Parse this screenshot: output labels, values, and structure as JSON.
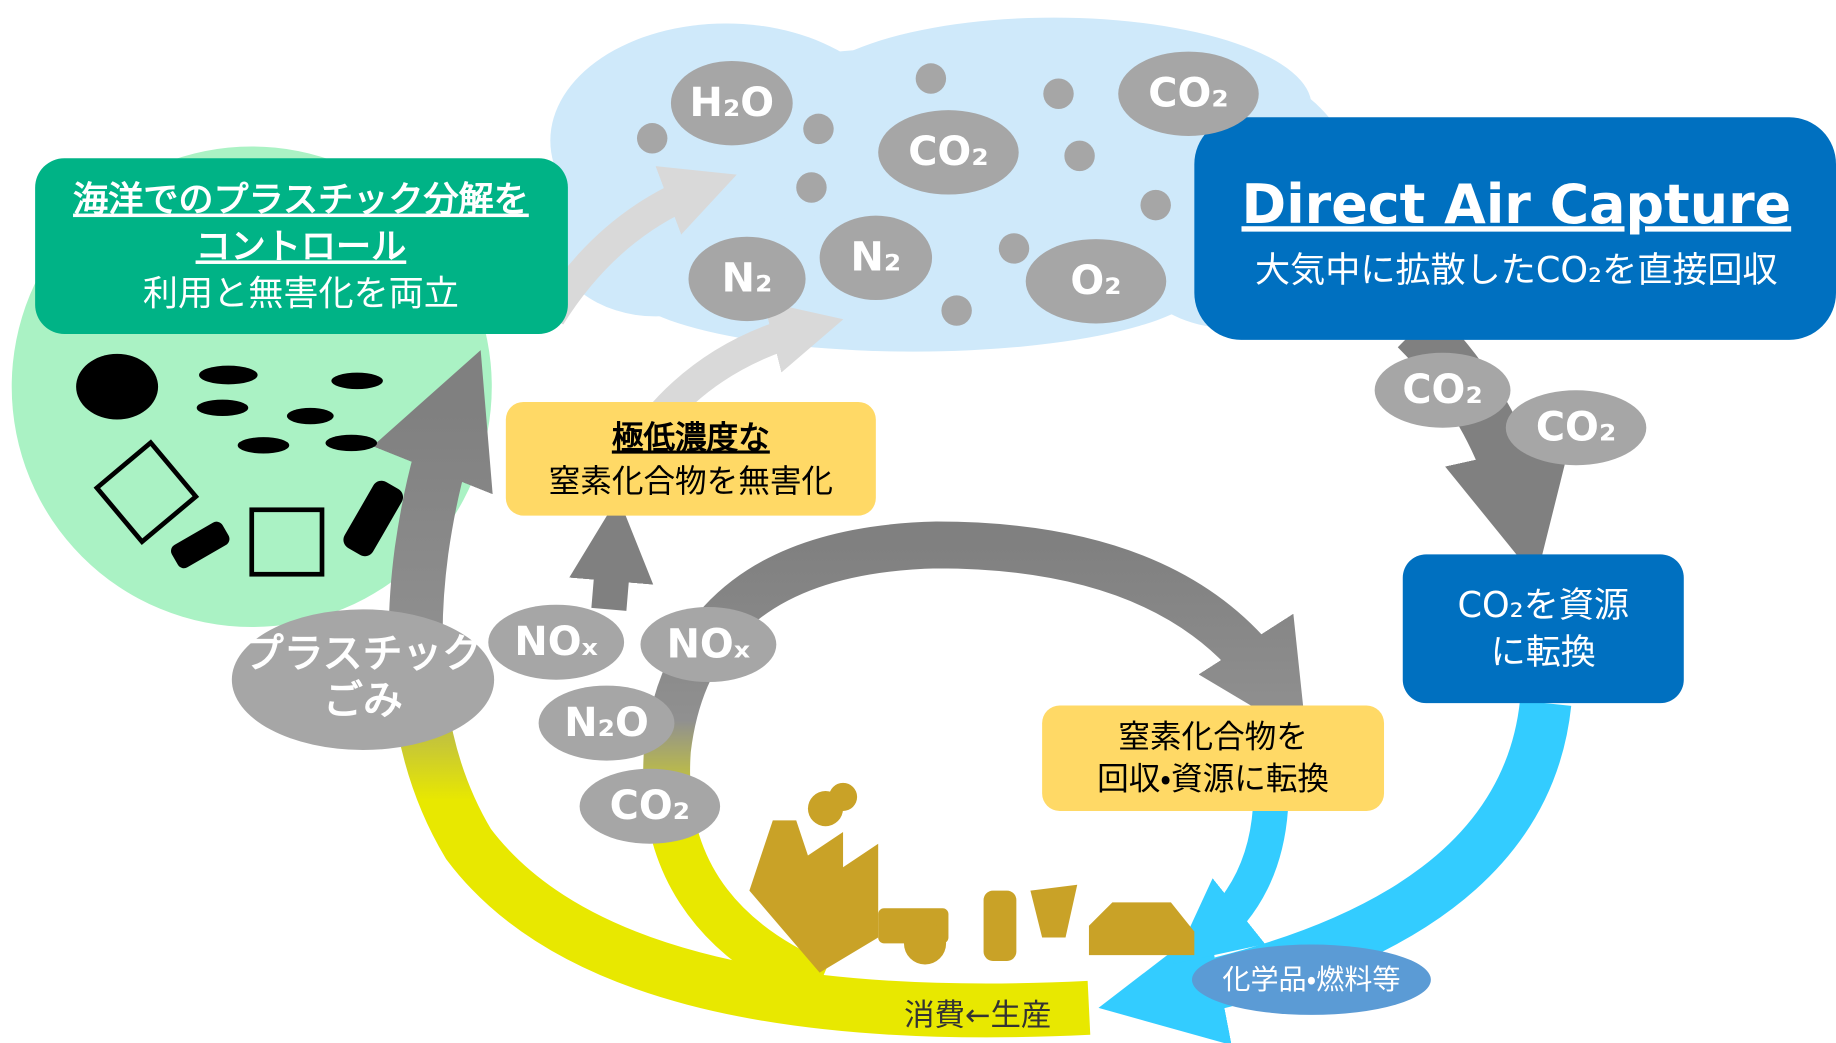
{
  "ocean_box": {
    "title_lines": [
      "海洋でのプラスチック分解を",
      "コントロール"
    ],
    "subtitle": "利用と無害化を両立"
  },
  "dac_box": {
    "title": "Direct Air Capture",
    "subtitle": "大気中に拡散したCO₂を直接回収"
  },
  "nox_box": {
    "title": "極低濃度な",
    "subtitle": "窒素化合物を無害化"
  },
  "recover_box": {
    "lines": [
      "窒素化合物を",
      "回収・資源に転換"
    ]
  },
  "resource_box": {
    "lines": [
      "CO₂を資源",
      "に転換"
    ]
  },
  "plastic_label": {
    "lines": [
      "プラスチック",
      "ごみ"
    ]
  },
  "products_label": "化学品・燃料等",
  "cycle_label": "消費←生産",
  "cloud_molecules": [
    "H₂O",
    "CO₂",
    "CO₂",
    "N₂",
    "N₂",
    "O₂"
  ],
  "dac_molecules": [
    "CO₂",
    "CO₂"
  ],
  "emission_molecules": [
    "NOₓ",
    "NOₓ",
    "N₂O",
    "CO₂"
  ]
}
